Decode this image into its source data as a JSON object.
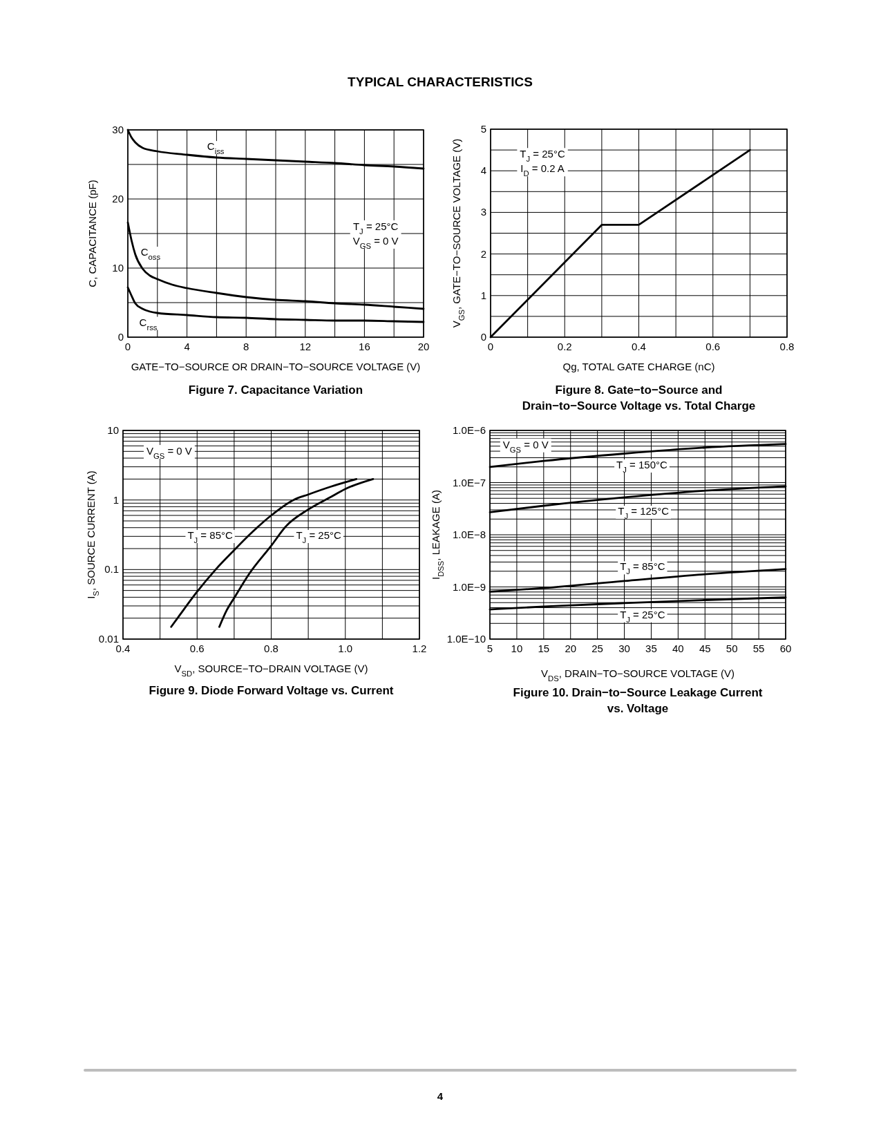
{
  "chart_data": [
    {
      "type": "other",
      "title": "TYPICAL CHARACTERISTICS",
      "annotations": [
        "4"
      ]
    },
    {
      "type": "line",
      "title": "Figure 7. Capacitance Variation",
      "xlabel": "GATE−TO−SOURCE OR DRAIN−TO−SOURCE VOLTAGE (V)",
      "ylabel": "C, CAPACITANCE (pF)",
      "xlim": [
        0,
        20
      ],
      "ylim": [
        0,
        30
      ],
      "xticks": [
        0,
        {
          "value": 2,
          "label": null
        },
        4,
        {
          "value": 6,
          "label": null
        },
        8,
        {
          "value": 10,
          "label": null
        },
        12,
        {
          "value": 14,
          "label": null
        },
        16,
        {
          "value": 18,
          "label": null
        },
        20
      ],
      "yticks": [
        0,
        {
          "value": 5,
          "label": null
        },
        10,
        {
          "value": 15,
          "label": null
        },
        20,
        {
          "value": 25,
          "label": null
        },
        30
      ],
      "grid": true,
      "annotations": [
        "T$_{J}$ = 25°C",
        "V$_{GS}$ = 0 V"
      ],
      "series": [
        {
          "name": "C$_{iss}$",
          "color": "#000000",
          "x": [
            0,
            0.25,
            0.5,
            1,
            2,
            4,
            6,
            8,
            10,
            12,
            14,
            16,
            18,
            20
          ],
          "values": [
            30,
            28.9,
            28.2,
            27.4,
            26.9,
            26.4,
            26.0,
            25.8,
            25.6,
            25.4,
            25.2,
            24.9,
            24.7,
            24.4
          ]
        },
        {
          "name": "C$_{oss}$",
          "color": "#000000",
          "x": [
            0,
            0.25,
            0.5,
            1,
            1.5,
            2,
            3,
            4,
            6,
            8,
            10,
            12,
            14,
            16,
            18,
            20
          ],
          "values": [
            16.6,
            14,
            12,
            9.9,
            8.9,
            8.4,
            7.6,
            7.1,
            6.4,
            5.8,
            5.4,
            5.2,
            4.9,
            4.7,
            4.4,
            4.1
          ]
        },
        {
          "name": "C$_{rss}$",
          "color": "#000000",
          "x": [
            0,
            0.25,
            0.5,
            1,
            1.5,
            2,
            4,
            6,
            8,
            10,
            12,
            14,
            16,
            18,
            20
          ],
          "values": [
            7.2,
            6.0,
            4.9,
            4.1,
            3.7,
            3.5,
            3.2,
            2.9,
            2.8,
            2.6,
            2.5,
            2.4,
            2.4,
            2.3,
            2.2
          ]
        }
      ]
    },
    {
      "type": "line",
      "title": "Figure 8. Gate−to−Source and\nDrain−to−Source Voltage vs. Total Charge",
      "xlabel": "Qg, TOTAL GATE CHARGE (nC)",
      "ylabel": "V$_{GS}$, GATE−TO−SOURCE VOLTAGE (V)",
      "xlim": [
        0,
        0.8
      ],
      "ylim": [
        0,
        5
      ],
      "xticks": [
        0,
        {
          "value": 0.1,
          "label": null
        },
        0.2,
        {
          "value": 0.3,
          "label": null
        },
        0.4,
        {
          "value": 0.5,
          "label": null
        },
        0.6,
        {
          "value": 0.7,
          "label": null
        },
        0.8
      ],
      "yticks": [
        0,
        {
          "value": 0.5,
          "label": null
        },
        1,
        {
          "value": 1.5,
          "label": null
        },
        2,
        {
          "value": 2.5,
          "label": null
        },
        3,
        {
          "value": 3.5,
          "label": null
        },
        4,
        {
          "value": 4.5,
          "label": null
        },
        5
      ],
      "grid": true,
      "annotations": [
        "T$_{J}$ = 25°C",
        "I$_{D}$ = 0.2 A"
      ],
      "series": [
        {
          "color": "#000000",
          "x": [
            0,
            0.3,
            0.4,
            0.7
          ],
          "values": [
            0,
            2.7,
            2.7,
            4.5
          ]
        }
      ]
    },
    {
      "type": "line",
      "title": "Figure 9. Diode Forward Voltage vs. Current",
      "xlabel": "V$_{SD}$, SOURCE−TO−DRAIN VOLTAGE (V)",
      "ylabel": "I$_{S}$, SOURCE CURRENT (A)",
      "xlim": [
        0.4,
        1.2
      ],
      "ylim": [
        0.01,
        10
      ],
      "log": true,
      "xticks": [
        0.4,
        {
          "value": 0.5,
          "label": null
        },
        0.6,
        {
          "value": 0.7,
          "label": null
        },
        0.8,
        {
          "value": 0.9,
          "label": null
        },
        {
          "value": 1,
          "label": "1.0"
        },
        {
          "value": 1.1,
          "label": null
        },
        1.2
      ],
      "yticks": [
        0.01,
        {
          "value": 0.02,
          "label": null
        },
        {
          "value": 0.03,
          "label": null
        },
        {
          "value": 0.04,
          "label": null
        },
        {
          "value": 0.05,
          "label": null
        },
        {
          "value": 0.06,
          "label": null
        },
        {
          "value": 0.07,
          "label": null
        },
        {
          "value": 0.08,
          "label": null
        },
        {
          "value": 0.09,
          "label": null
        },
        0.1,
        {
          "value": 0.2,
          "label": null
        },
        {
          "value": 0.3,
          "label": null
        },
        {
          "value": 0.4,
          "label": null
        },
        {
          "value": 0.5,
          "label": null
        },
        {
          "value": 0.6,
          "label": null
        },
        {
          "value": 0.7,
          "label": null
        },
        {
          "value": 0.8,
          "label": null
        },
        {
          "value": 0.9,
          "label": null
        },
        1,
        {
          "value": 2,
          "label": null
        },
        {
          "value": 3,
          "label": null
        },
        {
          "value": 4,
          "label": null
        },
        {
          "value": 5,
          "label": null
        },
        {
          "value": 6,
          "label": null
        },
        {
          "value": 7,
          "label": null
        },
        {
          "value": 8,
          "label": null
        },
        {
          "value": 9,
          "label": null
        },
        10
      ],
      "grid": true,
      "annotations": [
        "V$_{GS}$ = 0 V"
      ],
      "series": [
        {
          "name": "T$_{J}$ = 85°C",
          "color": "#000000",
          "x": [
            0.53,
            0.55,
            0.6,
            0.65,
            0.7,
            0.75,
            0.8,
            0.86,
            0.9,
            0.96,
            1.03
          ],
          "values": [
            0.015,
            0.021,
            0.048,
            0.1,
            0.19,
            0.35,
            0.6,
            1.0,
            1.2,
            1.55,
            2
          ]
        },
        {
          "name": "T$_{J}$ = 25°C",
          "color": "#000000",
          "x": [
            0.66,
            0.68,
            0.7,
            0.74,
            0.8,
            0.84,
            0.9,
            0.96,
            1.0,
            1.075
          ],
          "values": [
            0.015,
            0.026,
            0.039,
            0.086,
            0.22,
            0.42,
            0.73,
            1.1,
            1.44,
            2
          ]
        }
      ]
    },
    {
      "type": "line",
      "title": "Figure 10. Drain−to−Source Leakage Current\nvs. Voltage",
      "xlabel": "V$_{DS}$, DRAIN−TO−SOURCE VOLTAGE (V)",
      "ylabel": "I$_{DSS}$, LEAKAGE (A)",
      "xlim": [
        5,
        60
      ],
      "ylim": [
        1e-10,
        1e-06
      ],
      "log": true,
      "xticks": [
        5,
        10,
        15,
        20,
        25,
        30,
        35,
        40,
        45,
        50,
        55,
        60
      ],
      "yticks": [
        {
          "value": 1e-10,
          "label": "1.0E−10"
        },
        {
          "value": 2e-10,
          "label": null
        },
        {
          "value": 3e-10,
          "label": null
        },
        {
          "value": 4e-10,
          "label": null
        },
        {
          "value": 5e-10,
          "label": null
        },
        {
          "value": 6e-10,
          "label": null
        },
        {
          "value": 7e-10,
          "label": null
        },
        {
          "value": 8e-10,
          "label": null
        },
        {
          "value": 9e-10,
          "label": null
        },
        {
          "value": 1e-09,
          "label": "1.0E−9"
        },
        {
          "value": 2e-09,
          "label": null
        },
        {
          "value": 3e-09,
          "label": null
        },
        {
          "value": 4e-09,
          "label": null
        },
        {
          "value": 5e-09,
          "label": null
        },
        {
          "value": 6e-09,
          "label": null
        },
        {
          "value": 7e-09,
          "label": null
        },
        {
          "value": 8e-09,
          "label": null
        },
        {
          "value": 9e-09,
          "label": null
        },
        {
          "value": 1e-08,
          "label": "1.0E−8"
        },
        {
          "value": 2e-08,
          "label": null
        },
        {
          "value": 3e-08,
          "label": null
        },
        {
          "value": 4e-08,
          "label": null
        },
        {
          "value": 5e-08,
          "label": null
        },
        {
          "value": 6e-08,
          "label": null
        },
        {
          "value": 7e-08,
          "label": null
        },
        {
          "value": 8e-08,
          "label": null
        },
        {
          "value": 9e-08,
          "label": null
        },
        {
          "value": 1e-07,
          "label": "1.0E−7"
        },
        {
          "value": 2e-07,
          "label": null
        },
        {
          "value": 3e-07,
          "label": null
        },
        {
          "value": 4e-07,
          "label": null
        },
        {
          "value": 5e-07,
          "label": null
        },
        {
          "value": 6e-07,
          "label": null
        },
        {
          "value": 7e-07,
          "label": null
        },
        {
          "value": 8e-07,
          "label": null
        },
        {
          "value": 9e-07,
          "label": null
        },
        {
          "value": 1e-06,
          "label": "1.0E−6"
        }
      ],
      "grid": true,
      "annotations": [
        "V$_{GS}$ = 0 V"
      ],
      "series": [
        {
          "name": "T$_{J}$ = 150°C",
          "color": "#000000",
          "x": [
            5,
            15,
            30,
            45,
            60
          ],
          "values": [
            2e-07,
            2.6e-07,
            3.6e-07,
            4.7e-07,
            5.5e-07
          ]
        },
        {
          "name": "T$_{J}$ = 125°C",
          "color": "#000000",
          "x": [
            5,
            15,
            30,
            45,
            60
          ],
          "values": [
            2.7e-08,
            3.6e-08,
            5.2e-08,
            7e-08,
            8.5e-08
          ]
        },
        {
          "name": "T$_{J}$ = 85°C",
          "color": "#000000",
          "x": [
            5,
            15,
            30,
            45,
            60
          ],
          "values": [
            8.1e-10,
            9.5e-10,
            1.3e-09,
            1.75e-09,
            2.2e-09
          ]
        },
        {
          "name": "T$_{J}$ = 25°C",
          "color": "#000000",
          "x": [
            5,
            15,
            30,
            45,
            60
          ],
          "values": [
            3.7e-10,
            4.2e-10,
            4.9e-10,
            5.6e-10,
            6.3e-10
          ]
        }
      ]
    }
  ]
}
